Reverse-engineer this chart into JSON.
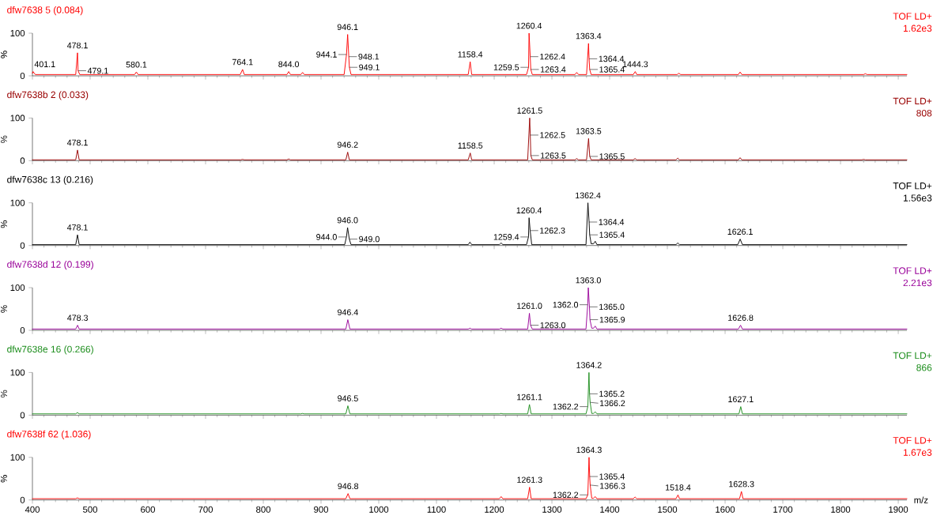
{
  "chart_data": [
    {
      "type": "line",
      "title": "dfw7638 5 (0.084)",
      "ylabel": "%",
      "xlim": [
        400,
        1915
      ],
      "ylim": [
        0,
        100
      ],
      "xticks": [
        400,
        500,
        600,
        700,
        800,
        900,
        1000,
        1100,
        1200,
        1300,
        1400,
        1500,
        1600,
        1700,
        1800,
        1900
      ],
      "yticks": [
        0,
        100
      ],
      "tick_labels": "y",
      "series": [
        {
          "color": "#ff0000",
          "x": [
            400,
            401.1,
            405,
            475,
            478.1,
            479.1,
            482,
            577,
            580.1,
            583,
            760,
            764.1,
            767,
            841,
            844.0,
            847,
            865,
            868,
            871,
            940,
            944.1,
            946.1,
            948.1,
            949.1,
            952,
            1155,
            1158.4,
            1161,
            1256,
            1259.5,
            1260.4,
            1262.4,
            1263.4,
            1266,
            1340,
            1343,
            1346,
            1360,
            1363.4,
            1364.4,
            1365.4,
            1368,
            1441,
            1444.3,
            1447,
            1517,
            1520,
            1523,
            1623,
            1626,
            1629,
            1840,
            1843,
            1846,
            1915
          ],
          "values": [
            6,
            10,
            3,
            3,
            54,
            12,
            3,
            3,
            9,
            3,
            3,
            15,
            3,
            3,
            10,
            3,
            3,
            8,
            3,
            3,
            50,
            97,
            45,
            20,
            3,
            3,
            33,
            3,
            3,
            20,
            100,
            45,
            15,
            3,
            3,
            8,
            3,
            3,
            76,
            40,
            15,
            3,
            3,
            10,
            3,
            3,
            6,
            3,
            3,
            9,
            3,
            3,
            5,
            3,
            3
          ]
        }
      ],
      "annotations": [
        "TOF LD+",
        "1.62e3",
        {
          "text": "401.1",
          "x": 401.1,
          "y": 10
        },
        {
          "text": "478.1",
          "x": 478.1,
          "y": 54
        },
        {
          "text": "479.1",
          "x": 479.1,
          "y": 12
        },
        {
          "text": "580.1",
          "x": 580.1,
          "y": 9
        },
        {
          "text": "764.1",
          "x": 764.1,
          "y": 15
        },
        {
          "text": "844.0",
          "x": 844.0,
          "y": 10
        },
        {
          "text": "944.1",
          "x": 944.1,
          "y": 50
        },
        {
          "text": "946.1",
          "x": 946.1,
          "y": 97
        },
        {
          "text": "948.1",
          "x": 948.1,
          "y": 45
        },
        {
          "text": "949.1",
          "x": 949.1,
          "y": 20
        },
        {
          "text": "1158.4",
          "x": 1158.4,
          "y": 33
        },
        {
          "text": "1259.5",
          "x": 1259.5,
          "y": 20
        },
        {
          "text": "1260.4",
          "x": 1260.4,
          "y": 100
        },
        {
          "text": "1262.4",
          "x": 1262.4,
          "y": 45
        },
        {
          "text": "1263.4",
          "x": 1263.4,
          "y": 15
        },
        {
          "text": "1363.4",
          "x": 1363.4,
          "y": 76
        },
        {
          "text": "1364.4",
          "x": 1364.4,
          "y": 40
        },
        {
          "text": "1365.4",
          "x": 1365.4,
          "y": 15
        },
        {
          "text": "1444.3",
          "x": 1444.3,
          "y": 10
        }
      ]
    },
    {
      "type": "line",
      "title": "dfw7638b 2 (0.033)",
      "ylabel": "%",
      "xlim": [
        400,
        1915
      ],
      "ylim": [
        0,
        100
      ],
      "xticks": [
        400,
        500,
        600,
        700,
        800,
        900,
        1000,
        1100,
        1200,
        1300,
        1400,
        1500,
        1600,
        1700,
        1800,
        1900
      ],
      "yticks": [
        0,
        100
      ],
      "tick_labels": "y",
      "series": [
        {
          "color": "#990000",
          "x": [
            400,
            475,
            478.1,
            481,
            761,
            764,
            767,
            841,
            844,
            847,
            943,
            946.2,
            949,
            1155,
            1158.5,
            1161,
            1258,
            1261.5,
            1262.5,
            1263.5,
            1266,
            1340,
            1343,
            1346,
            1360,
            1363.5,
            1365.5,
            1368,
            1441,
            1444,
            1447,
            1515,
            1518,
            1521,
            1623,
            1626,
            1629,
            1837,
            1840,
            1843,
            1915
          ],
          "values": [
            2,
            2,
            25,
            2,
            2,
            3,
            2,
            2,
            4,
            2,
            2,
            20,
            2,
            2,
            18,
            2,
            2,
            100,
            60,
            12,
            2,
            2,
            5,
            2,
            2,
            52,
            10,
            2,
            2,
            5,
            2,
            2,
            6,
            2,
            2,
            7,
            2,
            2,
            3,
            2,
            2
          ]
        }
      ],
      "annotations": [
        "TOF LD+",
        "808",
        {
          "text": "478.1",
          "x": 478.1,
          "y": 25
        },
        {
          "text": "946.2",
          "x": 946.2,
          "y": 20
        },
        {
          "text": "1158.5",
          "x": 1158.5,
          "y": 18
        },
        {
          "text": "1261.5",
          "x": 1261.5,
          "y": 100
        },
        {
          "text": "1262.5",
          "x": 1262.5,
          "y": 60
        },
        {
          "text": "1263.5",
          "x": 1263.5,
          "y": 12
        },
        {
          "text": "1363.5",
          "x": 1363.5,
          "y": 52
        },
        {
          "text": "1365.5",
          "x": 1365.5,
          "y": 10
        }
      ]
    },
    {
      "type": "line",
      "title": "dfw7638c 13 (0.216)",
      "ylabel": "%",
      "xlim": [
        400,
        1915
      ],
      "ylim": [
        0,
        100
      ],
      "xticks": [
        400,
        500,
        600,
        700,
        800,
        900,
        1000,
        1100,
        1200,
        1300,
        1400,
        1500,
        1600,
        1700,
        1800,
        1900
      ],
      "yticks": [
        0,
        100
      ],
      "tick_labels": "y",
      "series": [
        {
          "color": "#000000",
          "x": [
            400,
            475,
            478.1,
            481,
            941,
            944.0,
            946.0,
            949.0,
            952,
            1155,
            1158,
            1161,
            1209,
            1212,
            1215,
            1256,
            1259.4,
            1260.4,
            1262.3,
            1265,
            1359,
            1362.4,
            1364.4,
            1365.4,
            1368,
            1372,
            1375,
            1378,
            1515,
            1518,
            1521,
            1622,
            1626.1,
            1630,
            1915
          ],
          "values": [
            2,
            2,
            25,
            2,
            2,
            20,
            42,
            15,
            2,
            2,
            8,
            2,
            2,
            6,
            2,
            2,
            20,
            65,
            35,
            2,
            2,
            100,
            55,
            25,
            4,
            4,
            10,
            2,
            2,
            6,
            2,
            2,
            15,
            2,
            2
          ]
        }
      ],
      "annotations": [
        "TOF LD+",
        "1.56e3",
        {
          "text": "478.1",
          "x": 478.1,
          "y": 25
        },
        {
          "text": "944.0",
          "x": 944.0,
          "y": 20
        },
        {
          "text": "946.0",
          "x": 946.0,
          "y": 42
        },
        {
          "text": "949.0",
          "x": 949.0,
          "y": 15
        },
        {
          "text": "1259.4",
          "x": 1259.4,
          "y": 20
        },
        {
          "text": "1260.4",
          "x": 1260.4,
          "y": 65
        },
        {
          "text": "1262.3",
          "x": 1262.3,
          "y": 35
        },
        {
          "text": "1362.4",
          "x": 1362.4,
          "y": 100
        },
        {
          "text": "1364.4",
          "x": 1364.4,
          "y": 55
        },
        {
          "text": "1365.4",
          "x": 1365.4,
          "y": 25
        },
        {
          "text": "1626.1",
          "x": 1626.1,
          "y": 15
        }
      ]
    },
    {
      "type": "line",
      "title": "dfw7638d 12 (0.199)",
      "ylabel": "%",
      "xlim": [
        400,
        1915
      ],
      "ylim": [
        0,
        100
      ],
      "xticks": [
        400,
        500,
        600,
        700,
        800,
        900,
        1000,
        1100,
        1200,
        1300,
        1400,
        1500,
        1600,
        1700,
        1800,
        1900
      ],
      "yticks": [
        0,
        100
      ],
      "tick_labels": "y",
      "series": [
        {
          "color": "#990099",
          "x": [
            400,
            475,
            478.3,
            481,
            943,
            946.4,
            950,
            1155,
            1158,
            1161,
            1209,
            1212,
            1215,
            1258,
            1261.0,
            1263.0,
            1266,
            1359,
            1362.0,
            1363.0,
            1365.0,
            1365.9,
            1369,
            1372,
            1375,
            1378,
            1623,
            1626.8,
            1630,
            1915
          ],
          "values": [
            3,
            3,
            12,
            3,
            3,
            25,
            3,
            3,
            5,
            3,
            3,
            5,
            3,
            3,
            40,
            12,
            3,
            3,
            60,
            100,
            55,
            25,
            5,
            5,
            10,
            3,
            3,
            12,
            3,
            3
          ]
        }
      ],
      "annotations": [
        "TOF LD+",
        "2.21e3",
        {
          "text": "478.3",
          "x": 478.3,
          "y": 12
        },
        {
          "text": "946.4",
          "x": 946.4,
          "y": 25
        },
        {
          "text": "1261.0",
          "x": 1261.0,
          "y": 40
        },
        {
          "text": "1263.0",
          "x": 1263.0,
          "y": 12
        },
        {
          "text": "1362.0",
          "x": 1362.0,
          "y": 60
        },
        {
          "text": "1363.0",
          "x": 1363.0,
          "y": 100
        },
        {
          "text": "1365.0",
          "x": 1365.0,
          "y": 55
        },
        {
          "text": "1365.9",
          "x": 1365.9,
          "y": 25
        },
        {
          "text": "1626.8",
          "x": 1626.8,
          "y": 12
        }
      ]
    },
    {
      "type": "line",
      "title": "dfw7638e 16 (0.266)",
      "ylabel": "%",
      "xlim": [
        400,
        1915
      ],
      "ylim": [
        0,
        100
      ],
      "xticks": [
        400,
        500,
        600,
        700,
        800,
        900,
        1000,
        1100,
        1200,
        1300,
        1400,
        1500,
        1600,
        1700,
        1800,
        1900
      ],
      "yticks": [
        0,
        100
      ],
      "tick_labels": "y",
      "series": [
        {
          "color": "#1a8c1a",
          "x": [
            400,
            475,
            478,
            481,
            865,
            868,
            871,
            943,
            946.5,
            950,
            1209,
            1212,
            1215,
            1258,
            1261.1,
            1264,
            1359,
            1362.2,
            1364.2,
            1365.2,
            1366.2,
            1369,
            1372,
            1375,
            1378,
            1624,
            1627.1,
            1630,
            1915
          ],
          "values": [
            3,
            3,
            6,
            3,
            3,
            4,
            3,
            3,
            22,
            3,
            3,
            4,
            3,
            3,
            25,
            3,
            3,
            20,
            100,
            50,
            30,
            4,
            4,
            8,
            3,
            3,
            20,
            3,
            3
          ]
        }
      ],
      "annotations": [
        "TOF LD+",
        "866",
        {
          "text": "946.5",
          "x": 946.5,
          "y": 22
        },
        {
          "text": "1261.1",
          "x": 1261.1,
          "y": 25
        },
        {
          "text": "1362.2",
          "x": 1362.2,
          "y": 20
        },
        {
          "text": "1364.2",
          "x": 1364.2,
          "y": 100
        },
        {
          "text": "1365.2",
          "x": 1365.2,
          "y": 50
        },
        {
          "text": "1366.2",
          "x": 1366.2,
          "y": 30
        },
        {
          "text": "1627.1",
          "x": 1627.1,
          "y": 20
        }
      ]
    },
    {
      "type": "line",
      "title": "dfw7638f 62 (1.036)",
      "ylabel": "%",
      "xlabel": "m/z",
      "xlim": [
        400,
        1915
      ],
      "ylim": [
        0,
        100
      ],
      "xticks": [
        400,
        500,
        600,
        700,
        800,
        900,
        1000,
        1100,
        1200,
        1300,
        1400,
        1500,
        1600,
        1700,
        1800,
        1900
      ],
      "yticks": [
        0,
        100
      ],
      "series": [
        {
          "color": "#ff0000",
          "x": [
            400,
            475,
            478,
            481,
            943,
            946.8,
            950,
            1209,
            1212,
            1215,
            1258,
            1261.3,
            1264,
            1359,
            1362.2,
            1364.3,
            1365.4,
            1366.3,
            1369,
            1372,
            1375,
            1378,
            1441,
            1444,
            1447,
            1515,
            1518.4,
            1521,
            1625,
            1628.3,
            1631,
            1915
          ],
          "values": [
            3,
            3,
            5,
            3,
            3,
            15,
            3,
            3,
            8,
            3,
            3,
            30,
            3,
            3,
            12,
            100,
            55,
            35,
            4,
            4,
            8,
            3,
            3,
            7,
            3,
            3,
            12,
            3,
            3,
            20,
            3,
            3
          ]
        }
      ],
      "annotations": [
        "TOF LD+",
        "1.67e3",
        {
          "text": "946.8",
          "x": 946.8,
          "y": 15
        },
        {
          "text": "1261.3",
          "x": 1261.3,
          "y": 30
        },
        {
          "text": "1362.2",
          "x": 1362.2,
          "y": 12
        },
        {
          "text": "1364.3",
          "x": 1364.3,
          "y": 100
        },
        {
          "text": "1365.4",
          "x": 1365.4,
          "y": 55
        },
        {
          "text": "1366.3",
          "x": 1366.3,
          "y": 35
        },
        {
          "text": "1518.4",
          "x": 1518.4,
          "y": 12
        },
        {
          "text": "1628.3",
          "x": 1628.3,
          "y": 20
        }
      ]
    }
  ]
}
